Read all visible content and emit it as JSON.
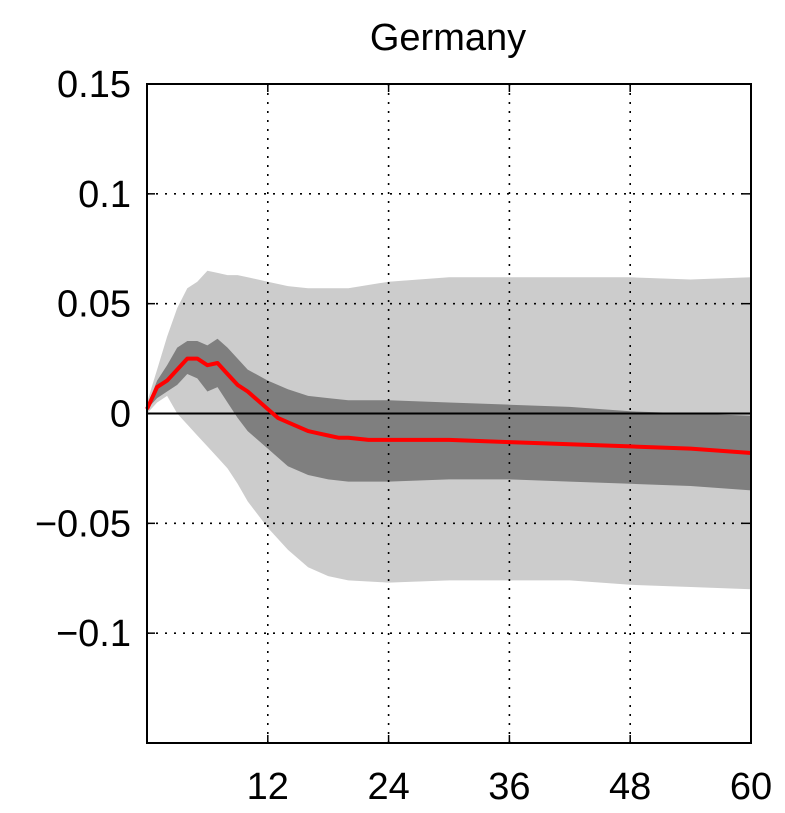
{
  "chart_data": {
    "type": "area",
    "title": "Germany",
    "xlabel": "",
    "ylabel": "",
    "xlim": [
      0,
      60
    ],
    "ylim": [
      -0.15,
      0.15
    ],
    "x_ticks": [
      12,
      24,
      36,
      48,
      60
    ],
    "x_tick_labels": [
      "12",
      "24",
      "36",
      "48",
      "60"
    ],
    "y_ticks": [
      0.15,
      0.1,
      0.05,
      0,
      -0.05,
      -0.1
    ],
    "y_tick_labels": [
      "0.15",
      "0.1",
      "0.05",
      "0",
      "−0.05",
      "−0.1"
    ],
    "grid": true,
    "zero_line": true,
    "colors": {
      "median": "#ff0000",
      "inner_band": "#7f7f7f",
      "outer_band": "#cccccc",
      "zero_line": "#000000"
    },
    "series": [
      {
        "role": "outer-band",
        "x": [
          0,
          1,
          2,
          3,
          4,
          5,
          6,
          7,
          8,
          9,
          10,
          12,
          14,
          16,
          18,
          20,
          24,
          30,
          36,
          42,
          48,
          54,
          60
        ],
        "upper": [
          0.005,
          0.02,
          0.035,
          0.048,
          0.057,
          0.06,
          0.065,
          0.064,
          0.063,
          0.063,
          0.062,
          0.06,
          0.058,
          0.057,
          0.057,
          0.057,
          0.06,
          0.062,
          0.062,
          0.062,
          0.062,
          0.061,
          0.062
        ],
        "lower": [
          0.0,
          0.005,
          0.008,
          0.0,
          -0.005,
          -0.01,
          -0.015,
          -0.02,
          -0.025,
          -0.032,
          -0.04,
          -0.052,
          -0.062,
          -0.07,
          -0.074,
          -0.076,
          -0.077,
          -0.076,
          -0.076,
          -0.076,
          -0.078,
          -0.079,
          -0.08
        ]
      },
      {
        "role": "inner-band",
        "x": [
          0,
          1,
          2,
          3,
          4,
          5,
          6,
          7,
          8,
          9,
          10,
          12,
          14,
          16,
          18,
          20,
          24,
          30,
          36,
          42,
          48,
          54,
          60
        ],
        "upper": [
          0.003,
          0.015,
          0.022,
          0.03,
          0.033,
          0.033,
          0.031,
          0.034,
          0.03,
          0.025,
          0.02,
          0.015,
          0.011,
          0.008,
          0.007,
          0.006,
          0.006,
          0.005,
          0.004,
          0.003,
          0.001,
          0.0,
          -0.001
        ],
        "lower": [
          0.002,
          0.007,
          0.01,
          0.013,
          0.018,
          0.016,
          0.01,
          0.012,
          0.005,
          -0.002,
          -0.008,
          -0.016,
          -0.024,
          -0.028,
          -0.03,
          -0.031,
          -0.031,
          -0.03,
          -0.03,
          -0.031,
          -0.032,
          -0.033,
          -0.035
        ]
      },
      {
        "role": "median",
        "x": [
          0,
          1,
          2,
          3,
          4,
          5,
          6,
          7,
          8,
          9,
          10,
          11,
          12,
          13,
          14,
          15,
          16,
          17,
          18,
          19,
          20,
          22,
          24,
          30,
          36,
          42,
          48,
          54,
          60
        ],
        "y": [
          0.002,
          0.012,
          0.015,
          0.02,
          0.025,
          0.025,
          0.022,
          0.023,
          0.018,
          0.013,
          0.01,
          0.006,
          0.002,
          -0.002,
          -0.004,
          -0.006,
          -0.008,
          -0.009,
          -0.01,
          -0.011,
          -0.011,
          -0.012,
          -0.012,
          -0.012,
          -0.013,
          -0.014,
          -0.015,
          -0.016,
          -0.018
        ]
      }
    ]
  }
}
